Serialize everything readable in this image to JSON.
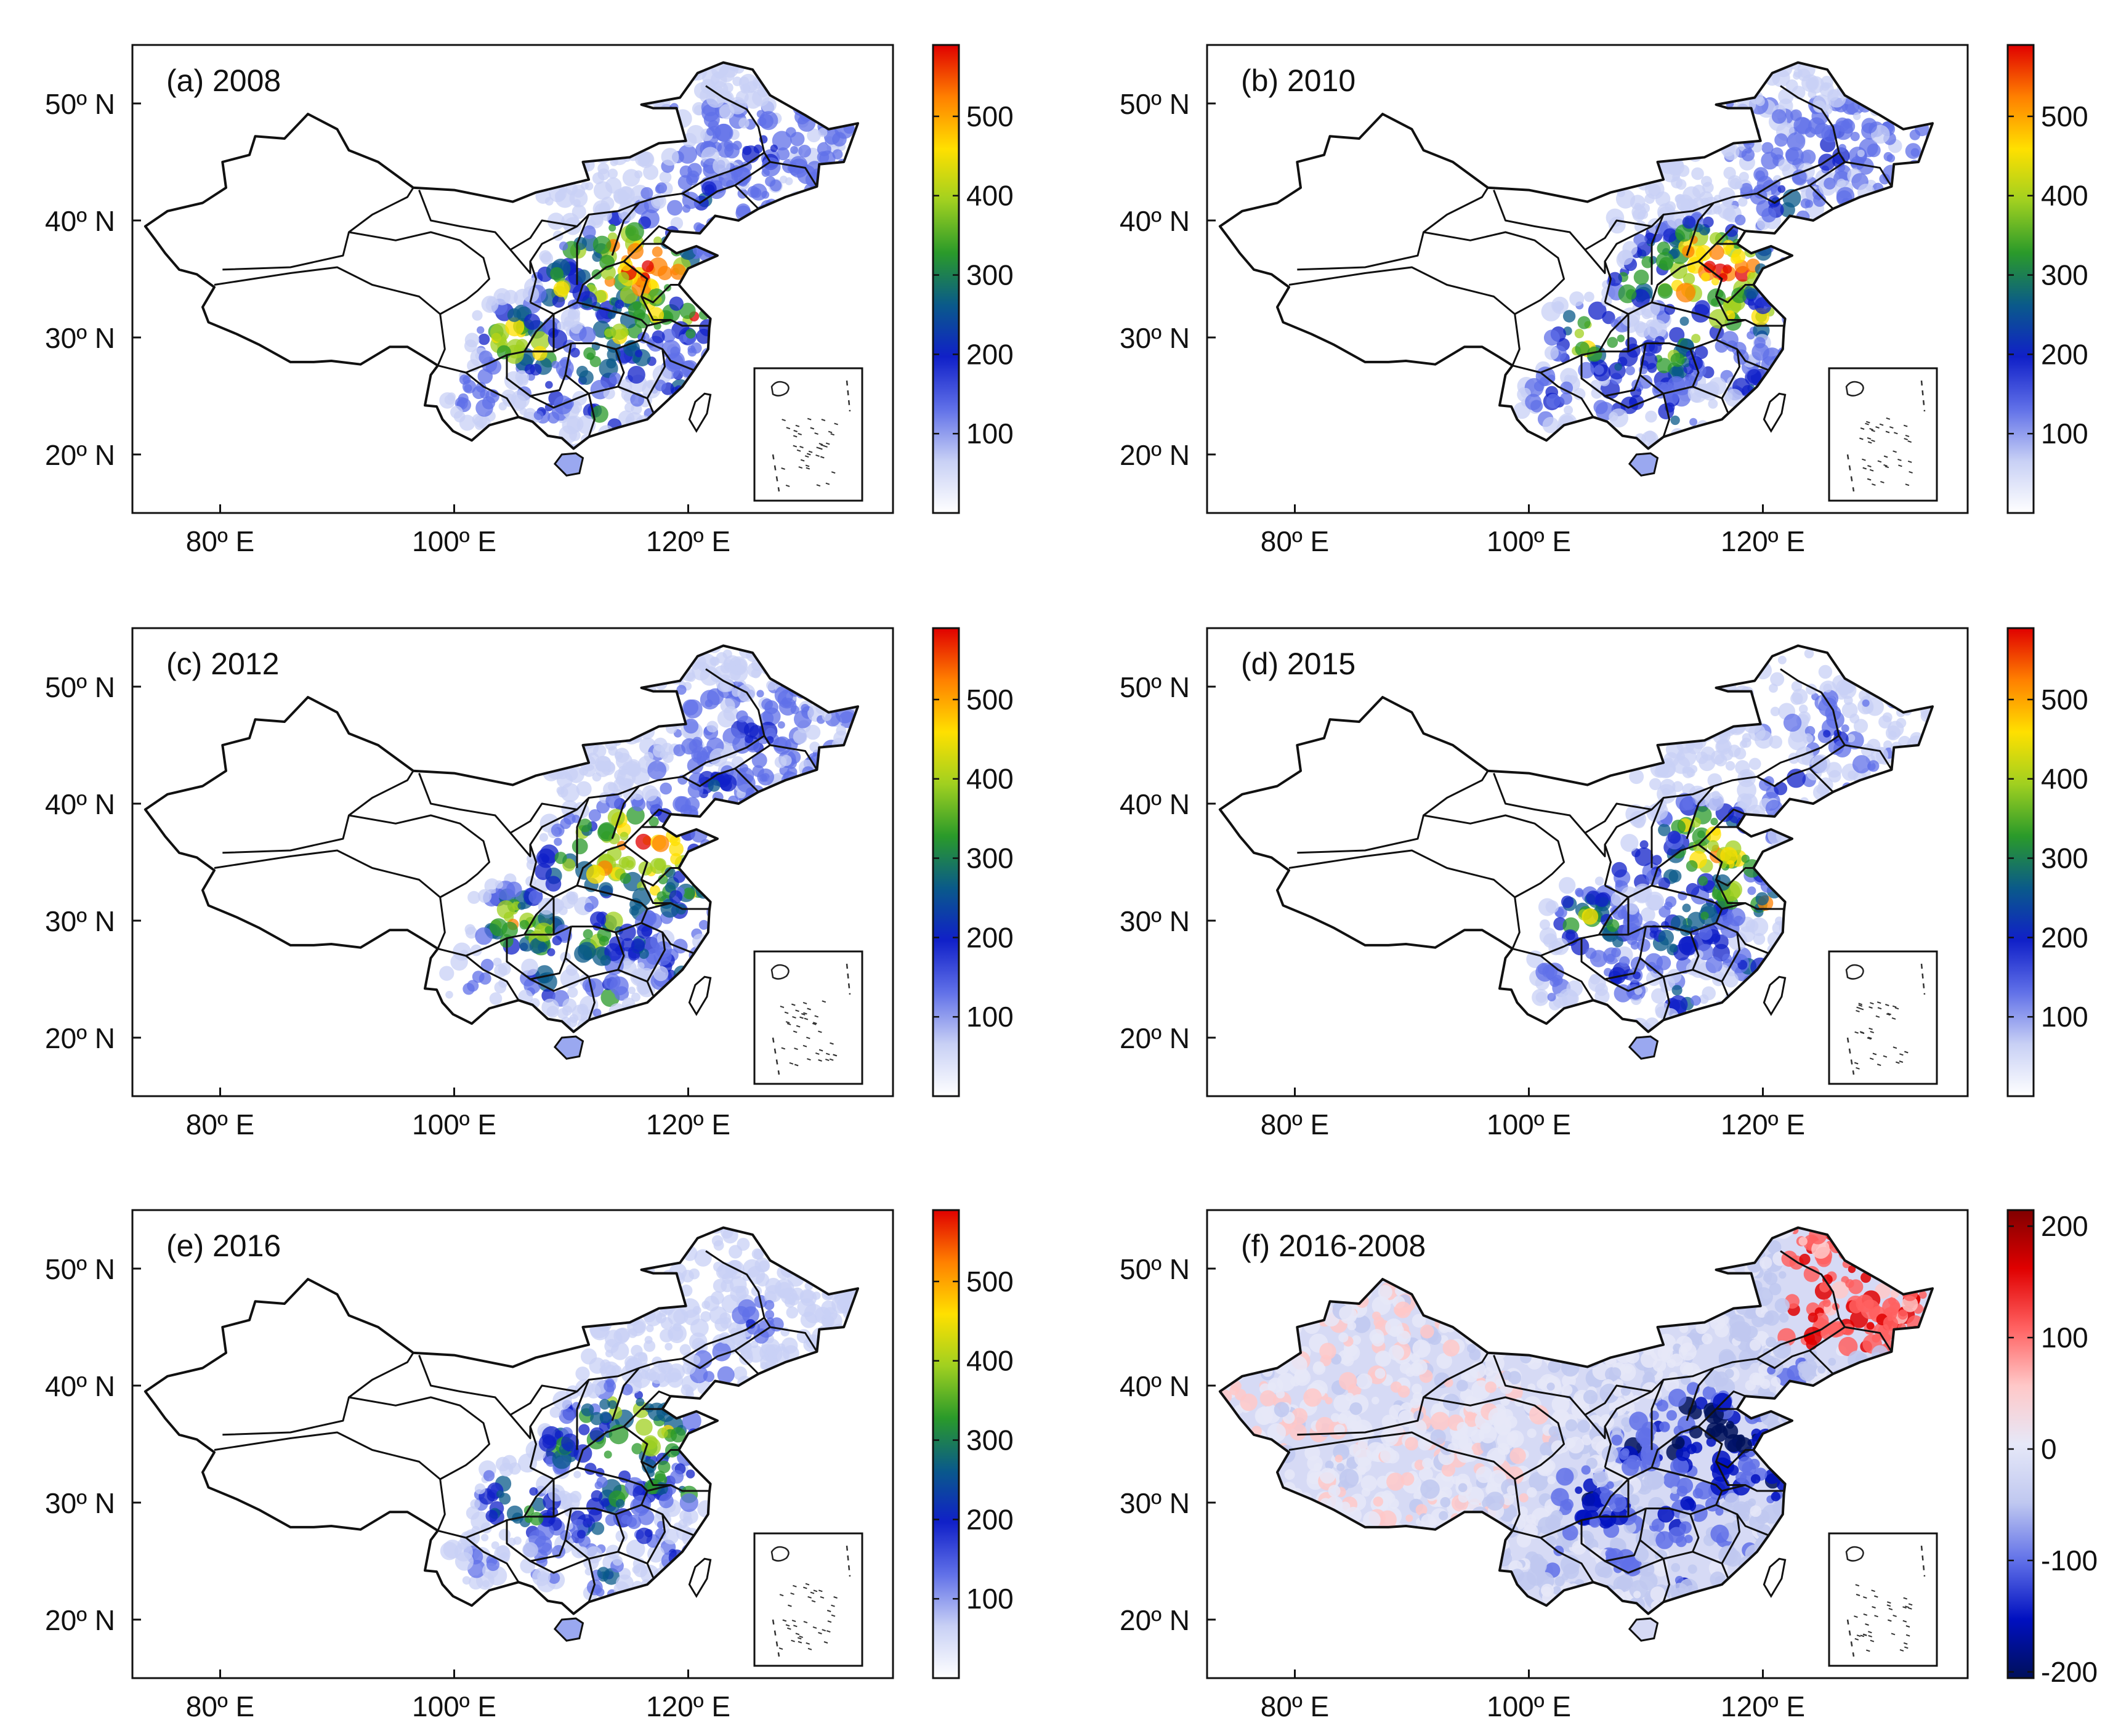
{
  "figure": {
    "panels": [
      {
        "id": "a",
        "label": "(a) 2008",
        "colormap": "rainbow",
        "colorbar_ticks": [
          "100",
          "200",
          "300",
          "400",
          "500"
        ]
      },
      {
        "id": "b",
        "label": "(b) 2010",
        "colormap": "rainbow",
        "colorbar_ticks": [
          "100",
          "200",
          "300",
          "400",
          "500"
        ]
      },
      {
        "id": "c",
        "label": "(c) 2012",
        "colormap": "rainbow",
        "colorbar_ticks": [
          "100",
          "200",
          "300",
          "400",
          "500"
        ]
      },
      {
        "id": "d",
        "label": "(d) 2015",
        "colormap": "rainbow",
        "colorbar_ticks": [
          "100",
          "200",
          "300",
          "400",
          "500"
        ]
      },
      {
        "id": "e",
        "label": "(e) 2016",
        "colormap": "rainbow",
        "colorbar_ticks": [
          "100",
          "200",
          "300",
          "400",
          "500"
        ]
      },
      {
        "id": "f",
        "label": "(f) 2016-2008",
        "colormap": "diverging",
        "colorbar_ticks": [
          "200",
          "100",
          "0",
          "-100",
          "-200"
        ]
      }
    ],
    "y_ticks": [
      "50º N",
      "40º N",
      "30º N",
      "20º N"
    ],
    "x_ticks": [
      "80º E",
      "100º E",
      "120º E"
    ],
    "colormaps": {
      "rainbow": [
        "#ffffff",
        "#c8d0f5",
        "#6070e8",
        "#1020c8",
        "#0a5a8a",
        "#2a9a2a",
        "#a0d020",
        "#ffe000",
        "#ff8000",
        "#e00000"
      ],
      "diverging": [
        "#00105a",
        "#0010c0",
        "#6070e8",
        "#c0c8f0",
        "#e6e8f8",
        "#ffc8c8",
        "#ff6060",
        "#e00000",
        "#800000"
      ]
    },
    "land_fill": {
      "rainbow": "#ffffff",
      "diverging": "#d6daf5"
    }
  }
}
